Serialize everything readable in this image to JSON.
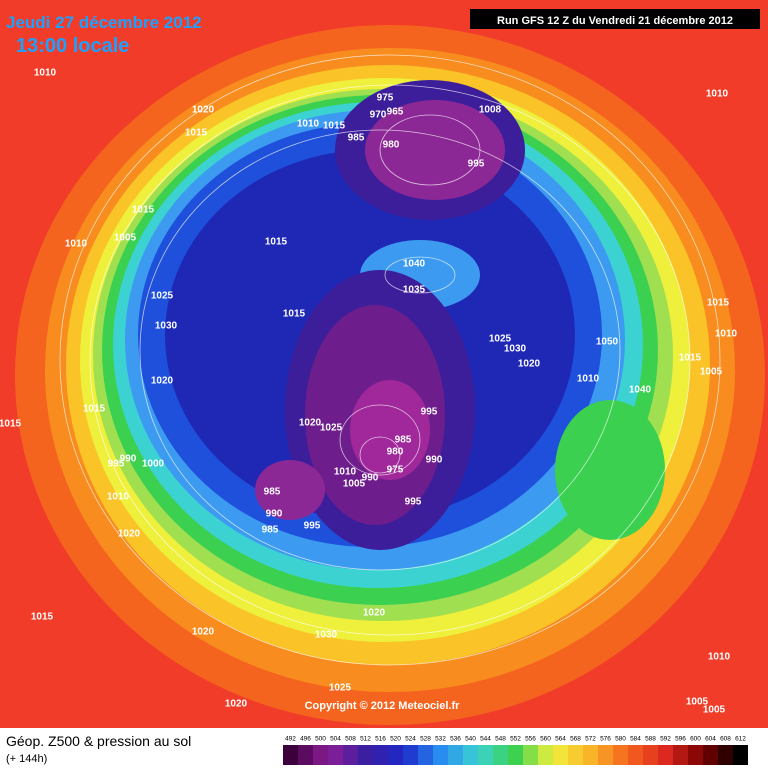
{
  "header": {
    "date": "Jeudi 27 décembre 2012",
    "time": "13:00 locale",
    "run": "Run GFS 12 Z du Vendredi 21 décembre 2012"
  },
  "map": {
    "pressure_labels": [
      "1010",
      "1020",
      "1015",
      "975",
      "970",
      "965",
      "1010",
      "1015",
      "985",
      "980",
      "1008",
      "995",
      "1010",
      "1015",
      "1005",
      "1010",
      "1015",
      "1040",
      "1035",
      "1025",
      "1030",
      "1015",
      "1025",
      "1030",
      "1020",
      "1050",
      "1015",
      "1010",
      "1015",
      "1005",
      "1010",
      "1040",
      "1020",
      "1015",
      "1015",
      "995",
      "1020",
      "1025",
      "985",
      "980",
      "990",
      "1010",
      "1005",
      "990",
      "975",
      "995",
      "985",
      "990",
      "985",
      "995",
      "990",
      "995",
      "1000",
      "1010",
      "1020",
      "1020",
      "1020",
      "1030",
      "1015",
      "1025",
      "1020",
      "1010",
      "1005",
      "1005"
    ]
  },
  "footer": {
    "copyright": "Copyright © 2012 Meteociel.fr",
    "title": "Géop. Z500 & pression au sol",
    "lead": "(+ 144h)"
  },
  "legend": {
    "levels": [
      492,
      496,
      500,
      504,
      508,
      512,
      516,
      520,
      524,
      528,
      532,
      536,
      540,
      544,
      548,
      552,
      556,
      560,
      564,
      568,
      572,
      576,
      580,
      584,
      588,
      592,
      596,
      600,
      604,
      608,
      612
    ]
  }
}
